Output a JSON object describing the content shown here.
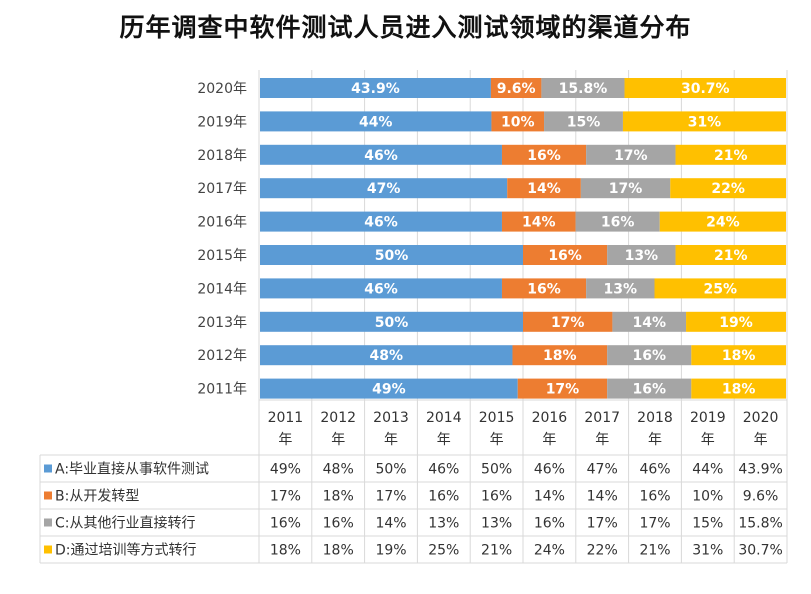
{
  "title": "历年调查中软件测试人员进入测试领域的渠道分布",
  "chart_data": {
    "type": "bar",
    "orientation": "horizontal",
    "stacked": "percent",
    "title": "历年调查中软件测试人员进入测试领域的渠道分布",
    "categories": [
      "2011年",
      "2012年",
      "2013年",
      "2014年",
      "2015年",
      "2016年",
      "2017年",
      "2018年",
      "2019年",
      "2020年"
    ],
    "table_headers": [
      [
        "2011",
        "年"
      ],
      [
        "2012",
        "年"
      ],
      [
        "2013",
        "年"
      ],
      [
        "2014",
        "年"
      ],
      [
        "2015",
        "年"
      ],
      [
        "2016",
        "年"
      ],
      [
        "2017",
        "年"
      ],
      [
        "2018",
        "年"
      ],
      [
        "2019",
        "年"
      ],
      [
        "2020",
        "年"
      ]
    ],
    "series": [
      {
        "name": "A:毕业直接从事软件测试",
        "color": "#5b9bd5",
        "values": [
          49,
          48,
          50,
          46,
          50,
          46,
          47,
          46,
          44,
          43.9
        ],
        "labels": [
          "49%",
          "48%",
          "50%",
          "46%",
          "50%",
          "46%",
          "47%",
          "46%",
          "44%",
          "43.9%"
        ]
      },
      {
        "name": "B:从开发转型",
        "color": "#ed7d31",
        "values": [
          17,
          18,
          17,
          16,
          16,
          14,
          14,
          16,
          10,
          9.6
        ],
        "labels": [
          "17%",
          "18%",
          "17%",
          "16%",
          "16%",
          "14%",
          "14%",
          "16%",
          "10%",
          "9.6%"
        ]
      },
      {
        "name": "C:从其他行业直接转行",
        "color": "#a5a5a5",
        "values": [
          16,
          16,
          14,
          13,
          13,
          16,
          17,
          17,
          15,
          15.8
        ],
        "labels": [
          "16%",
          "16%",
          "14%",
          "13%",
          "13%",
          "16%",
          "17%",
          "17%",
          "15%",
          "15.8%"
        ]
      },
      {
        "name": "D:通过培训等方式转行",
        "color": "#ffc000",
        "values": [
          18,
          18,
          19,
          25,
          21,
          24,
          22,
          21,
          31,
          30.7
        ],
        "labels": [
          "18%",
          "18%",
          "19%",
          "25%",
          "21%",
          "24%",
          "22%",
          "21%",
          "31%",
          "30.7%"
        ]
      }
    ],
    "legend": "data-table-below",
    "grid": true
  }
}
